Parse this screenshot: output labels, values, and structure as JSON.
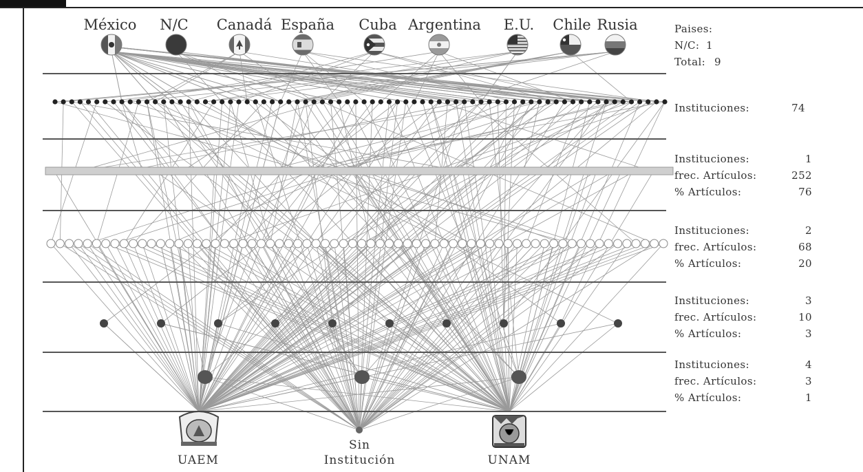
{
  "countries": {
    "items": [
      {
        "label": "México",
        "icon": "mexico-flag-icon"
      },
      {
        "label": "N/C",
        "icon": "unknown-country-icon"
      },
      {
        "label": "Canadá",
        "icon": "canada-flag-icon"
      },
      {
        "label": "España",
        "icon": "spain-flag-icon"
      },
      {
        "label": "Cuba",
        "icon": "cuba-flag-icon"
      },
      {
        "label": "Argentina",
        "icon": "argentina-flag-icon"
      },
      {
        "label": "E.U.",
        "icon": "usa-flag-icon"
      },
      {
        "label": "Chile",
        "icon": "chile-flag-icon"
      },
      {
        "label": "Rusia",
        "icon": "russia-flag-icon"
      }
    ]
  },
  "panels": {
    "paises": {
      "title": "Paises:",
      "nc_label": "N/C:",
      "nc_value": "1",
      "total_label": "Total:",
      "total_value": "9"
    },
    "tier0": {
      "inst_label": "Instituciones:",
      "inst_value": "74"
    },
    "tier1": {
      "inst_label": "Instituciones:",
      "inst_value": "1",
      "freq_label": "frec. Artículos:",
      "freq_value": "252",
      "pct_label": "% Artículos:",
      "pct_value": "76"
    },
    "tier2": {
      "inst_label": "Instituciones:",
      "inst_value": "2",
      "freq_label": "frec. Artículos:",
      "freq_value": "68",
      "pct_label": "% Artículos:",
      "pct_value": "20"
    },
    "tier3": {
      "inst_label": "Instituciones:",
      "inst_value": "3",
      "freq_label": "frec. Artículos:",
      "freq_value": "10",
      "pct_label": "% Artículos:",
      "pct_value": "3"
    },
    "tier4": {
      "inst_label": "Instituciones:",
      "inst_value": "4",
      "freq_label": "frec. Artículos:",
      "freq_value": "3",
      "pct_label": "% Artículos:",
      "pct_value": "1"
    }
  },
  "bases": {
    "uaem": {
      "label": "UAEM",
      "icon": "uaem-seal-icon"
    },
    "none": {
      "label_line1": "Sin",
      "label_line2": "Institución"
    },
    "unam": {
      "label": "UNAM",
      "icon": "unam-seal-icon"
    }
  },
  "counts": {
    "tier0_nodes": 74,
    "tier2_nodes": 68,
    "tier3_nodes": 10,
    "tier4_nodes": 3
  },
  "colors": {
    "frame": "#222222",
    "separator": "#555555",
    "edge": "#9a9a9a",
    "node_dark": "#222222",
    "node_mid": "#444444",
    "bar": "#cfcfcf"
  }
}
